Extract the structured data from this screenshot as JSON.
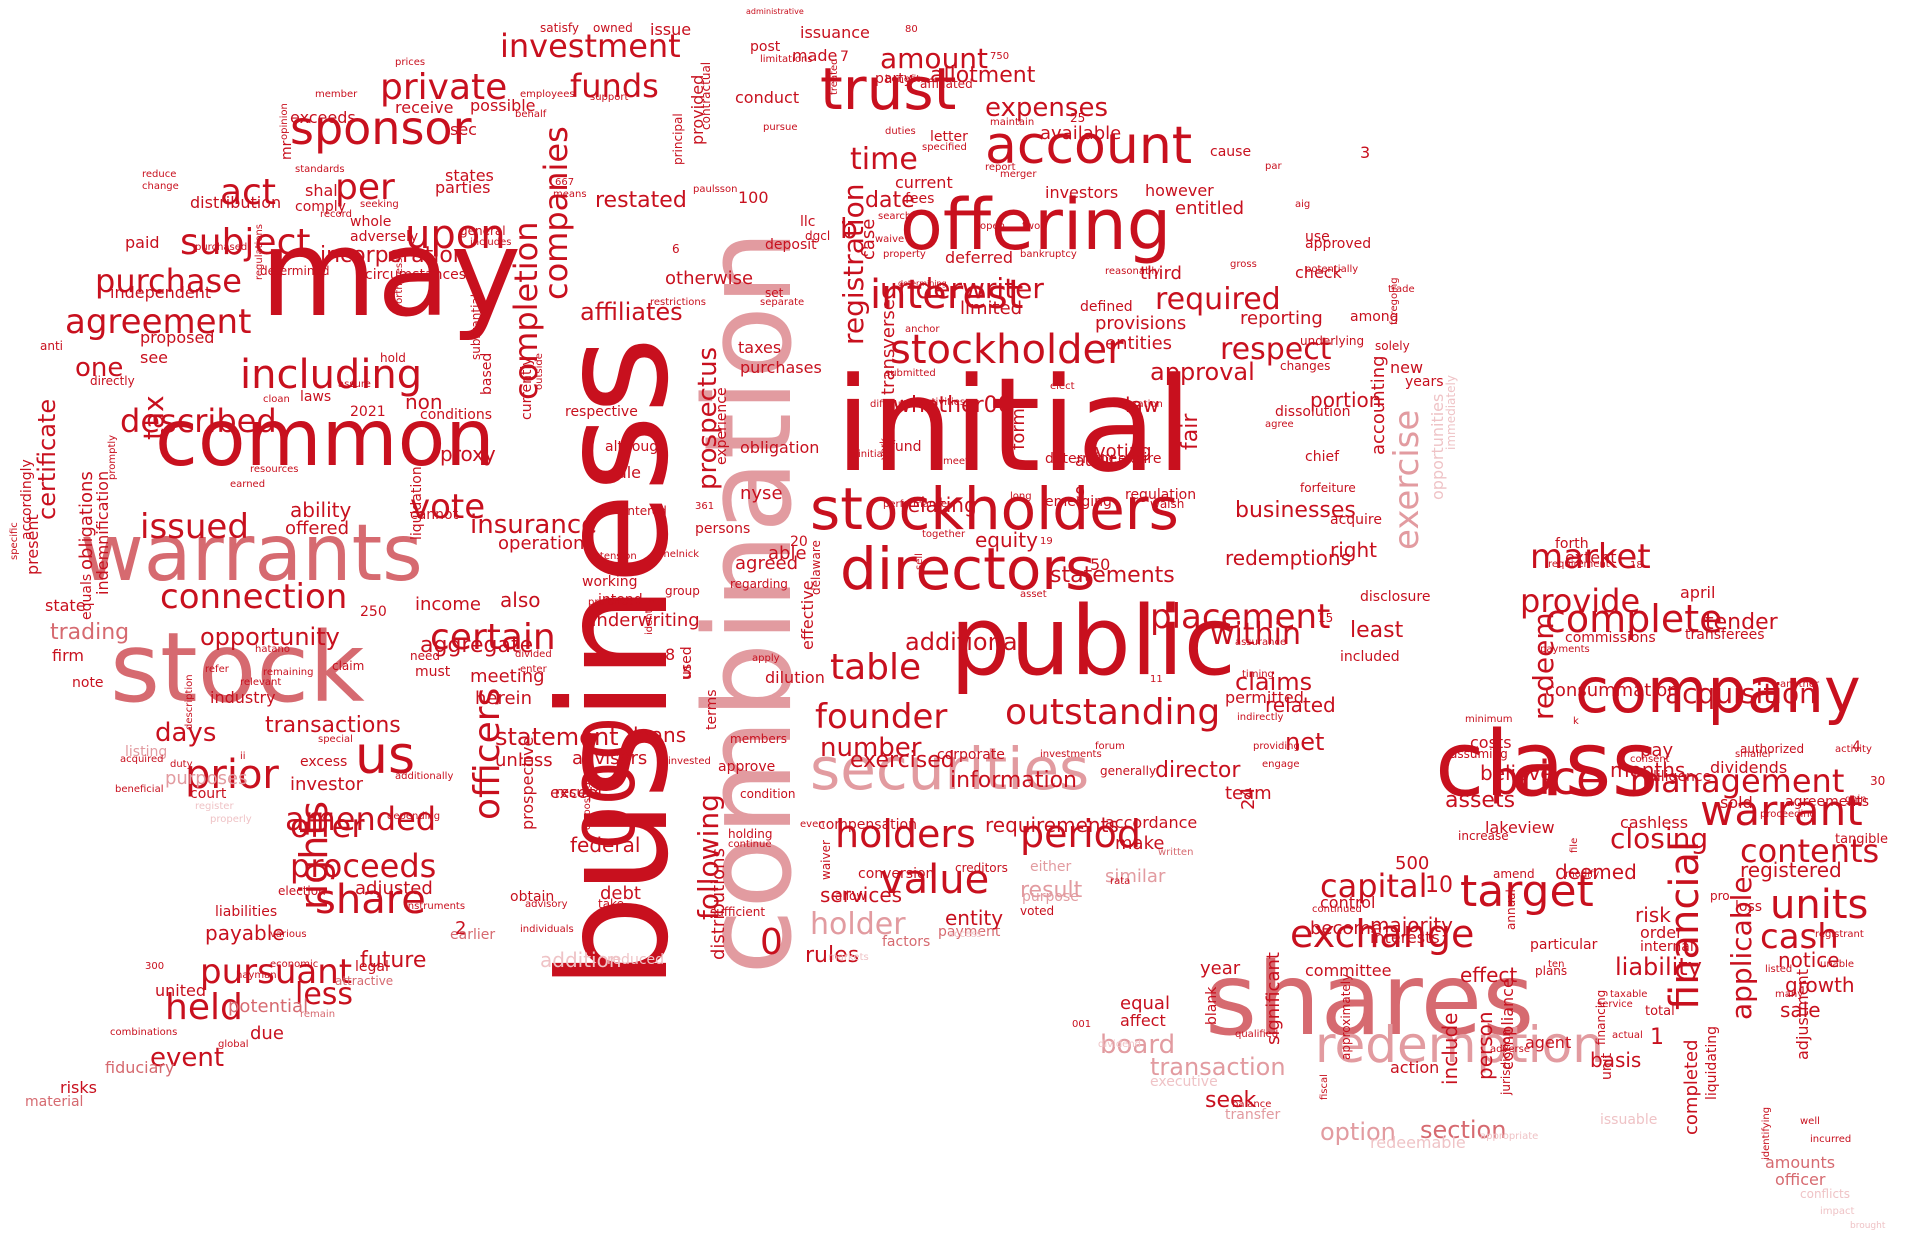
{
  "palette": {
    "dark": "#c8101e",
    "mid": "#d66a70",
    "light": "#e29ba0",
    "pale": "#efc3c6"
  },
  "words": [
    "business",
    "combination",
    "initial",
    "may",
    "shares",
    "public",
    "warrants",
    "stock",
    "common",
    "offering",
    "company",
    "class",
    "securities",
    "directors",
    "stockholders",
    "account",
    "trust",
    "redemption",
    "sponsor",
    "including",
    "financial",
    "warrant",
    "target",
    "price",
    "stockholder",
    "interest",
    "connection",
    "private",
    "funds",
    "investment",
    "us",
    "held",
    "offer",
    "share",
    "outstanding",
    "units",
    "holders",
    "value",
    "period",
    "table",
    "founder",
    "complete",
    "market",
    "provide",
    "capital",
    "exchange",
    "cash",
    "contents",
    "management",
    "acquisition",
    "placement",
    "within",
    "exercise",
    "certain",
    "upon",
    "companies",
    "completion",
    "agreement",
    "subject",
    "act",
    "per",
    "purchase",
    "issued",
    "described",
    "vote",
    "tax",
    "rights",
    "officers",
    "amended",
    "proceeds",
    "pursuant",
    "prior",
    "transactions",
    "opportunity",
    "days",
    "event",
    "less",
    "future",
    "payable",
    "insurance",
    "statement",
    "aggregate",
    "loans",
    "notice",
    "closing",
    "growth",
    "liability",
    "year",
    "significant",
    "section",
    "option",
    "seek",
    "board",
    "transaction",
    "expenses",
    "allotment",
    "amount",
    "date",
    "time",
    "required",
    "respect",
    "approval",
    "underwriter",
    "reporting",
    "provisions",
    "entities",
    "registration",
    "prospectus",
    "following",
    "number",
    "additional",
    "exercised",
    "information",
    "requirements",
    "result",
    "holder",
    "addition",
    "rules",
    "services",
    "federal",
    "statements",
    "equity",
    "claims",
    "related",
    "net",
    "businesses",
    "redemptions",
    "fair",
    "law",
    "voting",
    "audit",
    "agreed",
    "able",
    "operations",
    "also",
    "income",
    "meeting",
    "herein",
    "unless",
    "advisors",
    "underwriting",
    "working",
    "effective",
    "dilution",
    "terms",
    "used",
    "distributions",
    "restated",
    "investors",
    "fees",
    "current",
    "however",
    "entitled",
    "available",
    "limited",
    "defined",
    "third",
    "check",
    "use",
    "among",
    "new",
    "years",
    "fund",
    "whether",
    "relating",
    "form",
    "determine",
    "regulation",
    "acquire",
    "right",
    "least",
    "included",
    "permitted",
    "director",
    "team",
    "accordance",
    "make",
    "similar",
    "either",
    "compensation",
    "conversion",
    "payment",
    "entity",
    "order",
    "internal",
    "risk",
    "interests",
    "majority",
    "become",
    "committee",
    "equal",
    "affect",
    "effect",
    "include",
    "person",
    "compliance",
    "basis",
    "completed",
    "applicable",
    "adjustment",
    "sale",
    "registered",
    "amounts",
    "officer",
    "conflicts",
    "impact",
    "brought",
    "well",
    "incurred",
    "deemed",
    "assets",
    "believe",
    "costs",
    "months",
    "redeem",
    "consummation",
    "tender",
    "extent",
    "forth",
    "april",
    "commissions",
    "transferees",
    "dividends",
    "authorized",
    "cashless",
    "sold",
    "agreements",
    "pay",
    "total",
    "tangible",
    "particular",
    "lakeview",
    "diligence",
    "approve",
    "except",
    "members",
    "directly",
    "anti",
    "see",
    "proposed",
    "one",
    "obligations",
    "certificate",
    "equals",
    "state",
    "trading",
    "firm",
    "note",
    "independent",
    "paid",
    "distribution",
    "mr",
    "exceeds",
    "possible",
    "receive",
    "sec",
    "shall",
    "states",
    "parties",
    "comply",
    "whole",
    "adversely",
    "incorporation",
    "determined",
    "circumstances",
    "based",
    "substantial",
    "laws",
    "conditions",
    "proxy",
    "2021",
    "non",
    "hold",
    "respective",
    "purchases",
    "taxes",
    "otherwise",
    "provided",
    "contractual",
    "principal",
    "issue",
    "issuance",
    "made",
    "post",
    "conduct",
    "party",
    "satisfy",
    "owned",
    "administrative",
    "necessary",
    "deposit",
    "set",
    "separate",
    "llc",
    "case",
    "transverse",
    "delaware",
    "nyse",
    "obligation",
    "although",
    "rule",
    "persons",
    "experience",
    "group",
    "regarding",
    "intend",
    "preferred",
    "entered",
    "ability",
    "offered",
    "listing",
    "purposes",
    "court",
    "register",
    "properly",
    "beneficial",
    "potential",
    "remain",
    "due",
    "fiduciary",
    "risks",
    "material",
    "united",
    "attractive",
    "legal",
    "election",
    "liabilities",
    "various",
    "adjusted",
    "investor",
    "cannot",
    "must",
    "industry",
    "need",
    "liquidation",
    "currently",
    "outside",
    "prospective",
    "results",
    "excess",
    "corporate",
    "condition",
    "holding",
    "sufficient",
    "debt",
    "earlier",
    "reduced",
    "markets",
    "factors",
    "access",
    "instruments",
    "depending",
    "additionally",
    "advisory",
    "individuals",
    "take",
    "obtain",
    "allow",
    "waiver",
    "even",
    "creditors",
    "voted",
    "purpose",
    "rata",
    "written",
    "service",
    "actual",
    "qualified",
    "balance",
    "dividend",
    "executive",
    "transfer",
    "redeemable",
    "appropriate",
    "issuable",
    "documents",
    "identifying",
    "modify",
    "requirement",
    "gain",
    "activity",
    "smaller",
    "consent",
    "minimum",
    "assuming",
    "providing",
    "engage",
    "investments",
    "forum",
    "generally",
    "timing",
    "assurance",
    "indirectly",
    "foregoing",
    "solely",
    "trade",
    "underlying",
    "changes",
    "forfeiture",
    "chief",
    "agree",
    "consideration",
    "expire",
    "walsh",
    "performance",
    "long",
    "emerging",
    "elect",
    "meet",
    "initially",
    "york",
    "difficult",
    "activities",
    "submitted",
    "anchor",
    "determining",
    "potentially",
    "reasonably",
    "gross",
    "property",
    "waive",
    "search",
    "bankruptcy",
    "deferred",
    "open",
    "two",
    "merger",
    "report",
    "specified",
    "duties",
    "letter",
    "maintain",
    "benefit",
    "affiliated",
    "treated",
    "pursue",
    "limitations",
    "contained",
    "materials",
    "reasonable",
    "dgcl",
    "means",
    "opinion",
    "behalf",
    "employees",
    "support",
    "prices",
    "member",
    "standards",
    "seeking",
    "record",
    "reduce",
    "change",
    "includes",
    "general",
    "purchased",
    "regulations",
    "cloan",
    "assure",
    "worthiness",
    "earned",
    "resources",
    "promptly",
    "accordingly",
    "specific",
    "present",
    "indemnification",
    "relevant",
    "refer",
    "hatano",
    "claim",
    "special",
    "economic",
    "remaining",
    "hayman",
    "global",
    "combinations",
    "acquired",
    "duty",
    "description",
    "identify",
    "divided",
    "enter",
    "continue",
    "apply",
    "invested",
    "disposition",
    "melnick",
    "paulsson",
    "extension",
    "restrictions",
    "together",
    "asset",
    "sell",
    "whether00",
    "aig",
    "par",
    "cause",
    "immediately",
    "opportunities",
    "disclosure",
    "accounting",
    "portion",
    "dissolution",
    "chief",
    "agent",
    "plans",
    "continued",
    "approximately",
    "unit",
    "liquidating",
    "fiscal",
    "jurisdiction",
    "adverse",
    "action",
    "blank",
    "control",
    "increase",
    "annual",
    "amend",
    "file",
    "financing",
    "pro",
    "loss",
    "ten",
    "listed",
    "unable",
    "many",
    "registrant",
    "payments",
    "another",
    "taxable",
    "proceeding",
    "affiliates",
    "allotment",
    "approved",
    "mr",
    "warrants"
  ],
  "numbers": [
    "000",
    "0",
    "1",
    "2",
    "3",
    "4",
    "5",
    "6",
    "7",
    "8",
    "9",
    "10",
    "15",
    "18",
    "19",
    "20",
    "24",
    "25",
    "30",
    "50",
    "80",
    "100",
    "250",
    "300",
    "361",
    "500",
    "667",
    "750",
    "001",
    "11",
    "b",
    "c",
    "k",
    "ii"
  ]
}
